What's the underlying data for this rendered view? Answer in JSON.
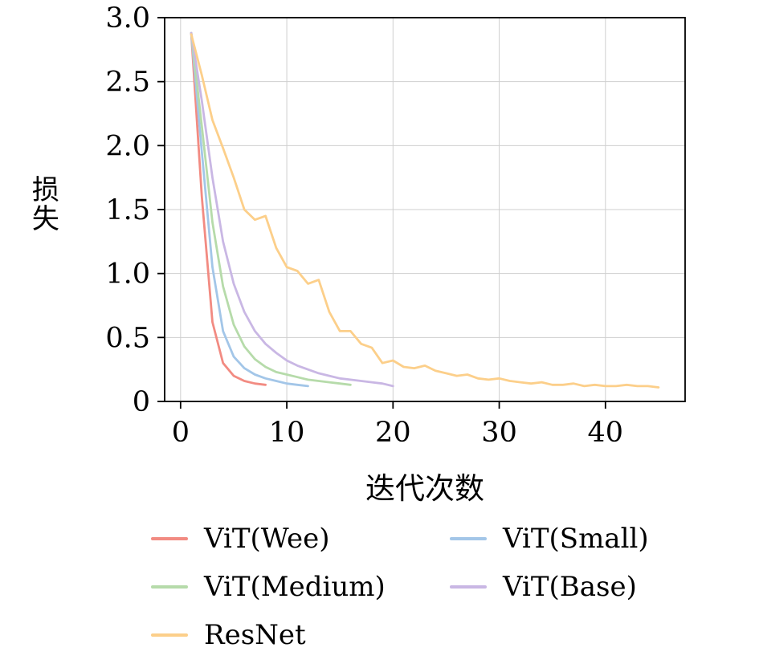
{
  "chart_data": {
    "type": "line",
    "title": "",
    "xlabel": "迭代次数",
    "ylabel": "损失",
    "xlim": [
      -1.5,
      47.5
    ],
    "ylim": [
      0,
      3.0
    ],
    "grid": true,
    "legend_position": "below-two-columns",
    "xticks": [
      0,
      10,
      20,
      30,
      40
    ],
    "xtick_labels": [
      "0",
      "10",
      "20",
      "30",
      "40"
    ],
    "yticks": [
      0,
      0.5,
      1.0,
      1.5,
      2.0,
      2.5,
      3.0
    ],
    "ytick_labels": [
      "0",
      "0.5",
      "1.0",
      "1.5",
      "2.0",
      "2.5",
      "3.0"
    ],
    "series": [
      {
        "name": "ViT(Wee)",
        "color": "#f28b82",
        "x": [
          1,
          2,
          3,
          4,
          5,
          6,
          7,
          8
        ],
        "y": [
          2.88,
          1.6,
          0.62,
          0.3,
          0.2,
          0.16,
          0.14,
          0.13
        ]
      },
      {
        "name": "ViT(Small)",
        "color": "#a3c6e8",
        "x": [
          1,
          2,
          3,
          4,
          5,
          6,
          7,
          8,
          9,
          10,
          11,
          12
        ],
        "y": [
          2.88,
          1.95,
          1.05,
          0.55,
          0.35,
          0.26,
          0.21,
          0.18,
          0.16,
          0.14,
          0.13,
          0.12
        ]
      },
      {
        "name": "ViT(Medium)",
        "color": "#b6dbaa",
        "x": [
          1,
          2,
          3,
          4,
          5,
          6,
          7,
          8,
          9,
          10,
          11,
          12,
          13,
          14,
          15,
          16
        ],
        "y": [
          2.88,
          2.15,
          1.4,
          0.9,
          0.6,
          0.43,
          0.33,
          0.27,
          0.23,
          0.21,
          0.19,
          0.17,
          0.16,
          0.15,
          0.14,
          0.13
        ]
      },
      {
        "name": "ViT(Base)",
        "color": "#c9b7e4",
        "x": [
          1,
          2,
          3,
          4,
          5,
          6,
          7,
          8,
          9,
          10,
          11,
          12,
          13,
          14,
          15,
          16,
          17,
          18,
          19,
          20
        ],
        "y": [
          2.88,
          2.35,
          1.75,
          1.25,
          0.92,
          0.7,
          0.55,
          0.45,
          0.38,
          0.32,
          0.28,
          0.25,
          0.22,
          0.2,
          0.18,
          0.17,
          0.16,
          0.15,
          0.14,
          0.12
        ]
      },
      {
        "name": "ResNet",
        "color": "#fccf8a",
        "x": [
          1,
          2,
          3,
          4,
          5,
          6,
          7,
          8,
          9,
          10,
          11,
          12,
          13,
          14,
          15,
          16,
          17,
          18,
          19,
          20,
          21,
          22,
          23,
          24,
          25,
          26,
          27,
          28,
          29,
          30,
          31,
          32,
          33,
          34,
          35,
          36,
          37,
          38,
          39,
          40,
          41,
          42,
          43,
          44,
          45
        ],
        "y": [
          2.87,
          2.55,
          2.2,
          1.98,
          1.75,
          1.5,
          1.42,
          1.45,
          1.2,
          1.05,
          1.02,
          0.92,
          0.95,
          0.7,
          0.55,
          0.55,
          0.45,
          0.42,
          0.3,
          0.32,
          0.27,
          0.26,
          0.28,
          0.24,
          0.22,
          0.2,
          0.21,
          0.18,
          0.17,
          0.18,
          0.16,
          0.15,
          0.14,
          0.15,
          0.13,
          0.13,
          0.14,
          0.12,
          0.13,
          0.12,
          0.12,
          0.13,
          0.12,
          0.12,
          0.11
        ]
      }
    ]
  }
}
